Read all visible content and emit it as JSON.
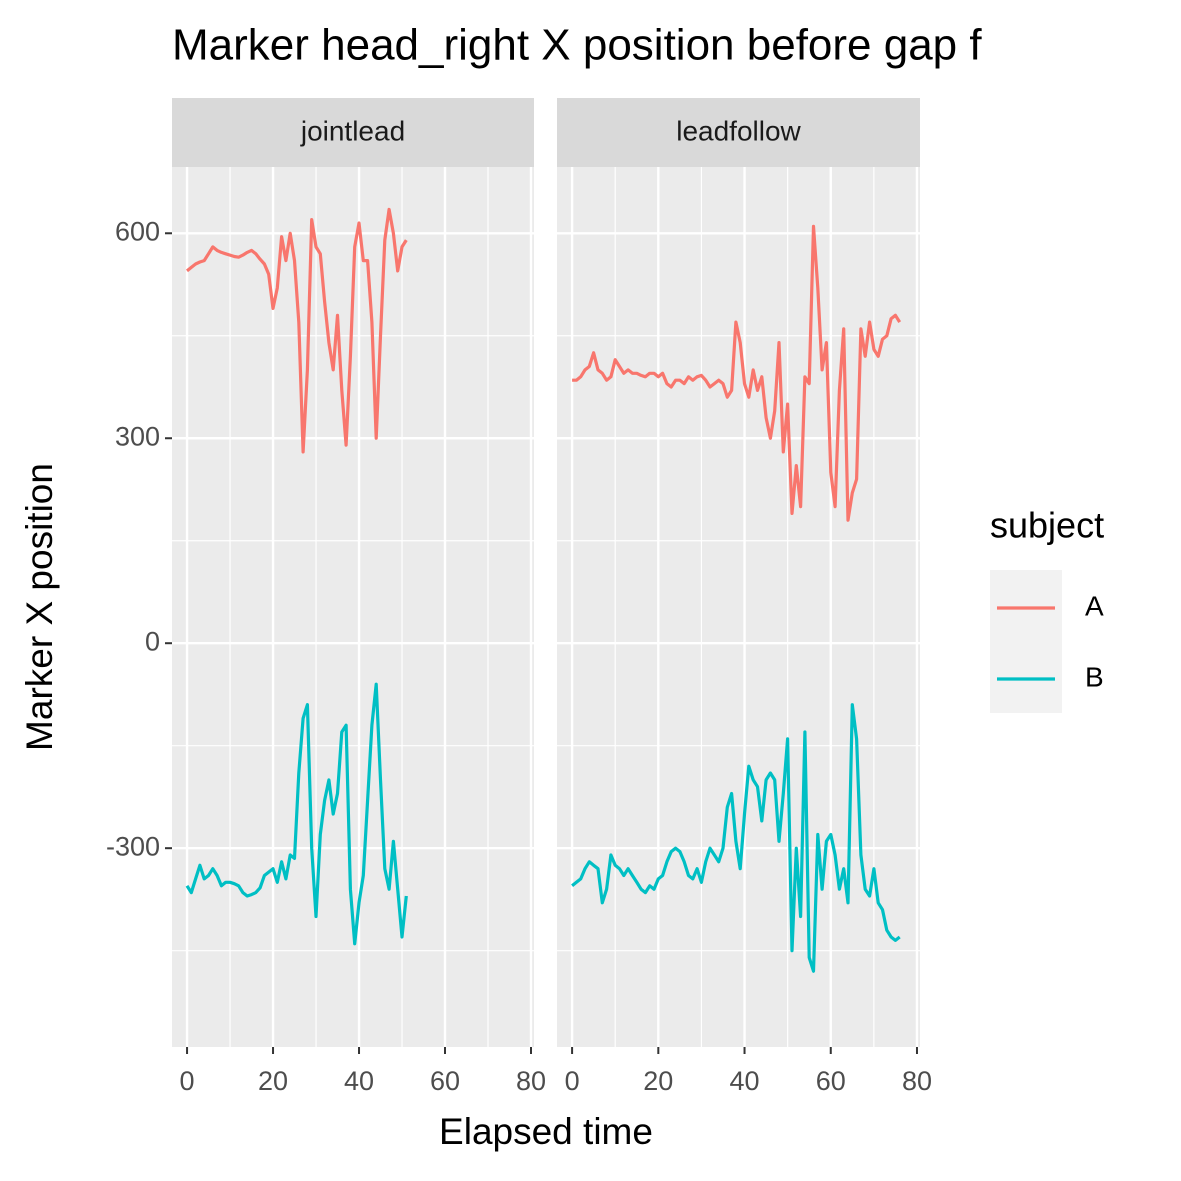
{
  "chart_data": {
    "type": "line",
    "title": "Marker head_right X position before gap f",
    "x_label": "Elapsed time",
    "y_label": "Marker X position",
    "legend_title": "subject",
    "legend_position": "right",
    "grid": true,
    "xlim": [
      -3.5,
      80.7
    ],
    "ylim": [
      -591,
      697
    ],
    "xticks": [
      0,
      20,
      40,
      60,
      80
    ],
    "yticks": [
      -300,
      0,
      300,
      600
    ],
    "facets": [
      {
        "label": "jointlead",
        "x": [
          0,
          1,
          2,
          3,
          4,
          5,
          6,
          7,
          8,
          9,
          10,
          11,
          12,
          13,
          14,
          15,
          16,
          17,
          18,
          19,
          20,
          21,
          22,
          23,
          24,
          25,
          26,
          27,
          28,
          29,
          30,
          31,
          32,
          33,
          34,
          35,
          36,
          37,
          38,
          39,
          40,
          41,
          42,
          43,
          44,
          45,
          46,
          47,
          48,
          49,
          50,
          51
        ],
        "series": [
          {
            "name": "A",
            "color": "#f8766d",
            "values": [
              545,
              550,
              555,
              558,
              560,
              570,
              580,
              575,
              572,
              570,
              568,
              566,
              565,
              568,
              572,
              575,
              570,
              562,
              555,
              540,
              490,
              520,
              595,
              560,
              600,
              560,
              470,
              280,
              400,
              620,
              580,
              570,
              500,
              440,
              400,
              480,
              370,
              290,
              420,
              580,
              615,
              560,
              560,
              470,
              300,
              450,
              590,
              635,
              600,
              545,
              580,
              590
            ]
          },
          {
            "name": "B",
            "color": "#00bfc4",
            "values": [
              -355,
              -365,
              -345,
              -325,
              -345,
              -340,
              -330,
              -340,
              -355,
              -350,
              -350,
              -352,
              -355,
              -365,
              -370,
              -368,
              -365,
              -358,
              -340,
              -335,
              -330,
              -350,
              -320,
              -345,
              -310,
              -315,
              -190,
              -110,
              -90,
              -300,
              -400,
              -280,
              -230,
              -200,
              -250,
              -220,
              -130,
              -120,
              -360,
              -440,
              -380,
              -340,
              -230,
              -120,
              -60,
              -200,
              -330,
              -360,
              -290,
              -360,
              -430,
              -370
            ]
          }
        ]
      },
      {
        "label": "leadfollow",
        "x": [
          0,
          1,
          2,
          3,
          4,
          5,
          6,
          7,
          8,
          9,
          10,
          11,
          12,
          13,
          14,
          15,
          16,
          17,
          18,
          19,
          20,
          21,
          22,
          23,
          24,
          25,
          26,
          27,
          28,
          29,
          30,
          31,
          32,
          33,
          34,
          35,
          36,
          37,
          38,
          39,
          40,
          41,
          42,
          43,
          44,
          45,
          46,
          47,
          48,
          49,
          50,
          51,
          52,
          53,
          54,
          55,
          56,
          57,
          58,
          59,
          60,
          61,
          62,
          63,
          64,
          65,
          66,
          67,
          68,
          69,
          70,
          71,
          72,
          73,
          74,
          75,
          76
        ],
        "series": [
          {
            "name": "A",
            "color": "#f8766d",
            "values": [
              385,
              385,
              390,
              400,
              405,
              425,
              400,
              395,
              385,
              390,
              415,
              405,
              395,
              400,
              395,
              395,
              392,
              390,
              395,
              395,
              390,
              395,
              380,
              375,
              385,
              385,
              380,
              390,
              385,
              390,
              392,
              385,
              375,
              380,
              385,
              380,
              360,
              370,
              470,
              440,
              380,
              360,
              400,
              370,
              390,
              330,
              300,
              340,
              440,
              280,
              350,
              190,
              260,
              200,
              390,
              380,
              610,
              520,
              400,
              440,
              250,
              200,
              370,
              460,
              180,
              220,
              240,
              460,
              420,
              470,
              430,
              420,
              445,
              450,
              475,
              480,
              470
            ]
          },
          {
            "name": "B",
            "color": "#00bfc4",
            "values": [
              -355,
              -350,
              -345,
              -330,
              -320,
              -325,
              -330,
              -380,
              -360,
              -310,
              -325,
              -330,
              -340,
              -330,
              -340,
              -350,
              -360,
              -365,
              -355,
              -360,
              -345,
              -340,
              -320,
              -305,
              -300,
              -305,
              -320,
              -340,
              -345,
              -330,
              -350,
              -320,
              -300,
              -310,
              -320,
              -300,
              -240,
              -220,
              -290,
              -330,
              -250,
              -180,
              -200,
              -210,
              -260,
              -200,
              -190,
              -200,
              -290,
              -220,
              -140,
              -450,
              -300,
              -400,
              -130,
              -460,
              -480,
              -280,
              -360,
              -290,
              -280,
              -310,
              -360,
              -330,
              -380,
              -90,
              -140,
              -310,
              -360,
              -370,
              -330,
              -380,
              -390,
              -420,
              -430,
              -435,
              -430
            ]
          }
        ]
      }
    ]
  }
}
